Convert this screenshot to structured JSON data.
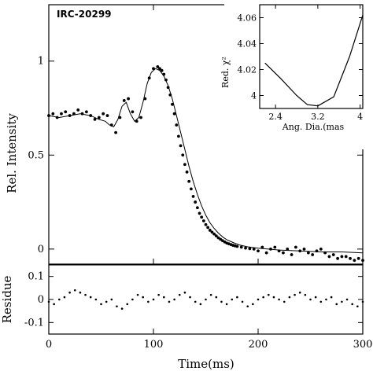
{
  "chart_data": [
    {
      "type": "scatter",
      "panel": "main",
      "annotation": "IRC-20299",
      "xlabel": "",
      "ylabel": "Rel. Intensity",
      "xlim": [
        0,
        300
      ],
      "ylim": [
        -0.08,
        1.3
      ],
      "yticks": [
        0,
        0.5,
        1
      ],
      "ytick_labels": [
        "0",
        "0.5",
        "1"
      ],
      "grid": false,
      "series": [
        {
          "kind": "points",
          "x": [
            0,
            4,
            8,
            12,
            16,
            20,
            24,
            28,
            32,
            36,
            40,
            44,
            48,
            52,
            56,
            60,
            64,
            68,
            72,
            76,
            80,
            84,
            88,
            92,
            96,
            100,
            104,
            106,
            108,
            110,
            112,
            114,
            116,
            118,
            120,
            122,
            124,
            126,
            128,
            130,
            132,
            134,
            136,
            138,
            140,
            142,
            144,
            146,
            148,
            150,
            152,
            154,
            156,
            158,
            160,
            162,
            164,
            166,
            168,
            170,
            172,
            174,
            176,
            178,
            180,
            184,
            188,
            192,
            196,
            200,
            204,
            208,
            212,
            216,
            220,
            224,
            228,
            232,
            236,
            240,
            244,
            248,
            252,
            256,
            260,
            264,
            268,
            272,
            276,
            280,
            284,
            288,
            292,
            296,
            300
          ],
          "y": [
            0.71,
            0.72,
            0.7,
            0.72,
            0.73,
            0.71,
            0.72,
            0.74,
            0.72,
            0.73,
            0.71,
            0.69,
            0.7,
            0.72,
            0.71,
            0.66,
            0.62,
            0.7,
            0.79,
            0.8,
            0.73,
            0.68,
            0.7,
            0.8,
            0.91,
            0.96,
            0.97,
            0.96,
            0.95,
            0.93,
            0.9,
            0.86,
            0.82,
            0.77,
            0.72,
            0.66,
            0.6,
            0.55,
            0.5,
            0.45,
            0.41,
            0.36,
            0.32,
            0.28,
            0.25,
            0.22,
            0.19,
            0.17,
            0.15,
            0.13,
            0.115,
            0.1,
            0.09,
            0.08,
            0.07,
            0.06,
            0.052,
            0.045,
            0.038,
            0.032,
            0.028,
            0.024,
            0.02,
            0.017,
            0.014,
            0.01,
            0.005,
            0.002,
            0,
            -0.01,
            0.01,
            -0.02,
            0,
            0.01,
            -0.01,
            -0.02,
            0,
            -0.03,
            0.01,
            -0.01,
            0,
            -0.02,
            -0.03,
            -0.01,
            0,
            -0.02,
            -0.04,
            -0.03,
            -0.05,
            -0.04,
            -0.04,
            -0.05,
            -0.06,
            -0.05,
            -0.06
          ]
        },
        {
          "kind": "line",
          "x": [
            0,
            10,
            20,
            30,
            40,
            48,
            54,
            58,
            62,
            66,
            70,
            74,
            78,
            82,
            86,
            90,
            94,
            98,
            102,
            106,
            110,
            114,
            118,
            122,
            126,
            130,
            134,
            138,
            142,
            146,
            150,
            154,
            158,
            162,
            166,
            170,
            176,
            182,
            190,
            200,
            210,
            220,
            240,
            260,
            280,
            300
          ],
          "y": [
            0.71,
            0.7,
            0.71,
            0.72,
            0.71,
            0.69,
            0.68,
            0.66,
            0.65,
            0.69,
            0.76,
            0.78,
            0.72,
            0.68,
            0.7,
            0.78,
            0.88,
            0.94,
            0.96,
            0.95,
            0.92,
            0.87,
            0.8,
            0.71,
            0.62,
            0.53,
            0.44,
            0.36,
            0.29,
            0.23,
            0.18,
            0.14,
            0.11,
            0.085,
            0.065,
            0.05,
            0.035,
            0.022,
            0.012,
            0.005,
            0,
            -0.005,
            -0.01,
            -0.015,
            -0.015,
            -0.02
          ]
        }
      ]
    },
    {
      "type": "scatter",
      "panel": "residue",
      "xlabel": "Time(ms)",
      "ylabel": "Residue",
      "xlim": [
        0,
        300
      ],
      "ylim": [
        -0.15,
        0.15
      ],
      "xticks": [
        0,
        100,
        200,
        300
      ],
      "xtick_labels": [
        "0",
        "100",
        "200",
        "300"
      ],
      "yticks": [
        -0.1,
        0,
        0.1
      ],
      "ytick_labels": [
        "-0.1",
        "0",
        "0.1"
      ],
      "grid": false,
      "series": [
        {
          "kind": "points",
          "x": [
            0,
            5,
            10,
            15,
            20,
            25,
            30,
            35,
            40,
            45,
            50,
            55,
            60,
            65,
            70,
            75,
            80,
            85,
            90,
            95,
            100,
            105,
            110,
            115,
            120,
            125,
            130,
            135,
            140,
            145,
            150,
            155,
            160,
            165,
            170,
            175,
            180,
            185,
            190,
            195,
            200,
            205,
            210,
            215,
            220,
            225,
            230,
            235,
            240,
            245,
            250,
            255,
            260,
            265,
            270,
            275,
            280,
            285,
            290,
            295,
            300
          ],
          "y": [
            -0.01,
            -0.02,
            0,
            0.01,
            0.03,
            0.04,
            0.03,
            0.02,
            0.01,
            0,
            -0.02,
            -0.01,
            0,
            -0.03,
            -0.04,
            -0.02,
            0,
            0.02,
            0.01,
            -0.01,
            0,
            0.02,
            0.01,
            -0.01,
            0,
            0.02,
            0.03,
            0.01,
            -0.01,
            -0.02,
            0,
            0.02,
            0.01,
            -0.01,
            -0.02,
            0,
            0.01,
            -0.01,
            -0.03,
            -0.02,
            0,
            0.01,
            0.02,
            0.01,
            0,
            -0.01,
            0.01,
            0.02,
            0.03,
            0.02,
            0,
            0.01,
            -0.01,
            0,
            0.01,
            -0.02,
            -0.01,
            0,
            -0.02,
            -0.03,
            -0.01
          ]
        }
      ]
    },
    {
      "type": "line",
      "panel": "inset",
      "xlabel": "Ang. Dia.(mas",
      "ylabel": "Red. χ²",
      "xlim": [
        2.1,
        4.05
      ],
      "ylim": [
        3.99,
        4.07
      ],
      "xticks": [
        2.4,
        3.2,
        4
      ],
      "xtick_labels": [
        "2.4",
        "3.2",
        "4"
      ],
      "yticks": [
        4,
        4.02,
        4.04,
        4.06
      ],
      "ytick_labels": [
        "4",
        "4.02",
        "4.04",
        "4.06"
      ],
      "grid": false,
      "series": [
        {
          "x": [
            2.2,
            2.5,
            2.8,
            3.0,
            3.2,
            3.5,
            3.8,
            4.05
          ],
          "y": [
            4.025,
            4.013,
            4.0,
            3.993,
            3.992,
            3.999,
            4.03,
            4.062
          ]
        }
      ]
    }
  ]
}
